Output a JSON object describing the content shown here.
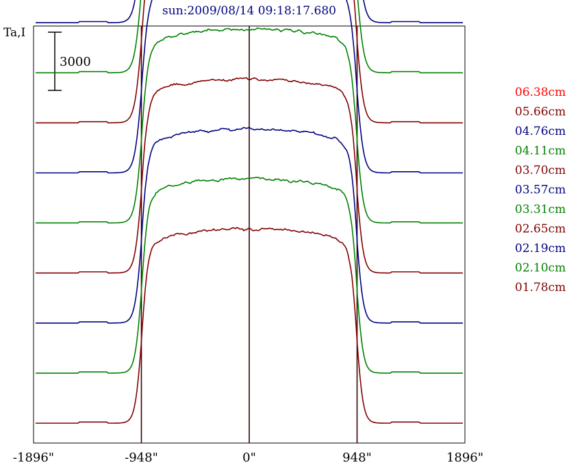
{
  "chart_data": {
    "type": "line",
    "title": "sun:2009/08/14 09:18:17.680",
    "ylabel": "Ta,I",
    "scale_bar_label": "3000",
    "scale_bar_value": 3000,
    "xlim": [
      -1896,
      1896
    ],
    "x_ticks": [
      {
        "value": -1896,
        "label": "-1896\""
      },
      {
        "value": -948,
        "label": "-948\""
      },
      {
        "value": 0,
        "label": "0\""
      },
      {
        "value": 948,
        "label": "948\""
      },
      {
        "value": 1896,
        "label": "1896\""
      }
    ],
    "vertical_reference_lines": [
      -948,
      0,
      948
    ],
    "legend_position": "right",
    "disk_level_ta": 10000,
    "stack_offset_ta": 2580,
    "series": [
      {
        "name": "06.38cm",
        "color": "#ff0000"
      },
      {
        "name": "05.66cm",
        "color": "#800000"
      },
      {
        "name": "04.76cm",
        "color": "#000080"
      },
      {
        "name": "04.11cm",
        "color": "#008000"
      },
      {
        "name": "03.70cm",
        "color": "#800000"
      },
      {
        "name": "03.57cm",
        "color": "#000080"
      },
      {
        "name": "03.31cm",
        "color": "#008000"
      },
      {
        "name": "02.65cm",
        "color": "#800000"
      },
      {
        "name": "02.19cm",
        "color": "#000080"
      },
      {
        "name": "02.10cm",
        "color": "#008000"
      },
      {
        "name": "01.78cm",
        "color": "#800000"
      }
    ]
  }
}
